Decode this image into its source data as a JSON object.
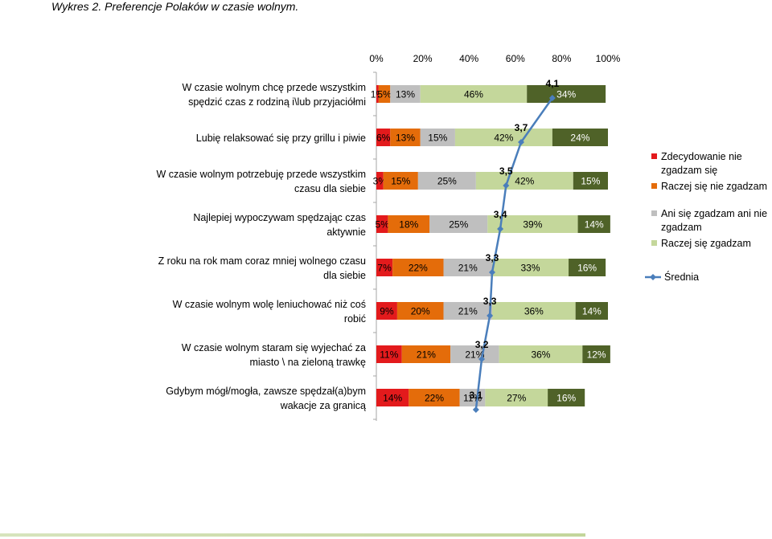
{
  "caption": "Wykres 2. Preferencje Polaków w czasie wolnym.",
  "colors": {
    "strongly_disagree": "#e31a1c",
    "disagree": "#e46c0a",
    "neutral": "#bfbfbf",
    "agree": "#c4d79b",
    "strongly_agree": "#4f6228",
    "mean_line": "#4a7ebb"
  },
  "chart_data": {
    "type": "bar",
    "orientation": "horizontal-stacked-100",
    "xlim": [
      0,
      100
    ],
    "x_ticks": [
      "0%",
      "20%",
      "40%",
      "60%",
      "80%",
      "100%"
    ],
    "categories": [
      [
        "W czasie wolnym chcę przede wszystkim",
        "spędzić czas z rodziną i\\lub przyjaciółmi"
      ],
      [
        "Lubię relaksować się przy grillu i piwie"
      ],
      [
        "W czasie wolnym potrzebuję przede wszystkim",
        "czasu dla siebie"
      ],
      [
        "Najlepiej wypoczywam spędzając czas",
        "aktywnie"
      ],
      [
        "Z roku na rok mam coraz mniej wolnego czasu",
        "dla siebie"
      ],
      [
        "W czasie wolnym wolę leniuchować niż coś",
        "robić"
      ],
      [
        "W czasie wolnym staram się wyjechać za",
        "miasto \\ na zieloną trawkę"
      ],
      [
        "Gdybym mógł/mogła, zawsze spędzał(a)bym",
        "wakacje za granicą"
      ]
    ],
    "series": [
      {
        "name": "Zdecydowanie nie zgadzam się",
        "color_key": "strongly_disagree",
        "values": [
          1,
          6,
          3,
          5,
          7,
          9,
          11,
          14
        ]
      },
      {
        "name": "Raczej się nie zgadzam",
        "color_key": "disagree",
        "values": [
          5,
          13,
          15,
          18,
          22,
          20,
          21,
          22
        ]
      },
      {
        "name": "Ani się zgadzam ani nie zgadzam",
        "color_key": "neutral",
        "values": [
          13,
          15,
          25,
          25,
          21,
          21,
          21,
          11
        ]
      },
      {
        "name": "Raczej się zgadzam",
        "color_key": "agree",
        "values": [
          46,
          42,
          42,
          39,
          33,
          36,
          36,
          27
        ]
      },
      {
        "color_key": "strongly_agree",
        "values": [
          34,
          24,
          15,
          14,
          16,
          14,
          12,
          16
        ]
      }
    ],
    "labels": [
      [
        "1%",
        "5%",
        "13%",
        "46%",
        "34%"
      ],
      [
        "6%",
        "13%",
        "15%",
        "42%",
        "24%"
      ],
      [
        "3%",
        "15%",
        "25%",
        "42%",
        "15%"
      ],
      [
        "5%",
        "18%",
        "25%",
        "39%",
        "14%"
      ],
      [
        "7%",
        "22%",
        "21%",
        "33%",
        "16%"
      ],
      [
        "9%",
        "20%",
        "21%",
        "36%",
        "14%"
      ],
      [
        "11%",
        "21%",
        "21%",
        "36%",
        "12%"
      ],
      [
        "14%",
        "22%",
        "11%",
        "27%",
        "16%"
      ]
    ],
    "mean": {
      "name": "Średnia",
      "values": [
        4.1,
        3.7,
        3.5,
        3.4,
        3.3,
        3.3,
        3.2,
        3.1
      ],
      "labels": [
        "4,1",
        "3,7",
        "3,5",
        "3,4",
        "3,3",
        "3,3",
        "3,2",
        "3,1"
      ],
      "x_percent": [
        76,
        62.5,
        56,
        53.5,
        50,
        49,
        45.5,
        43
      ]
    },
    "legend": {
      "position": "right",
      "entries": [
        {
          "lines": [
            "Zdecydowanie nie",
            "zgadzam się"
          ],
          "color_key": "strongly_disagree",
          "kind": "box"
        },
        {
          "lines": [
            "Raczej się nie zgadzam"
          ],
          "color_key": "disagree",
          "kind": "box"
        },
        {
          "lines": [
            "Ani się zgadzam ani nie",
            "zgadzam"
          ],
          "color_key": "neutral",
          "kind": "box"
        },
        {
          "lines": [
            "Raczej się zgadzam"
          ],
          "color_key": "agree",
          "kind": "box"
        },
        {
          "lines": [
            "Średnia"
          ],
          "color_key": "mean_line",
          "kind": "line"
        }
      ]
    }
  }
}
